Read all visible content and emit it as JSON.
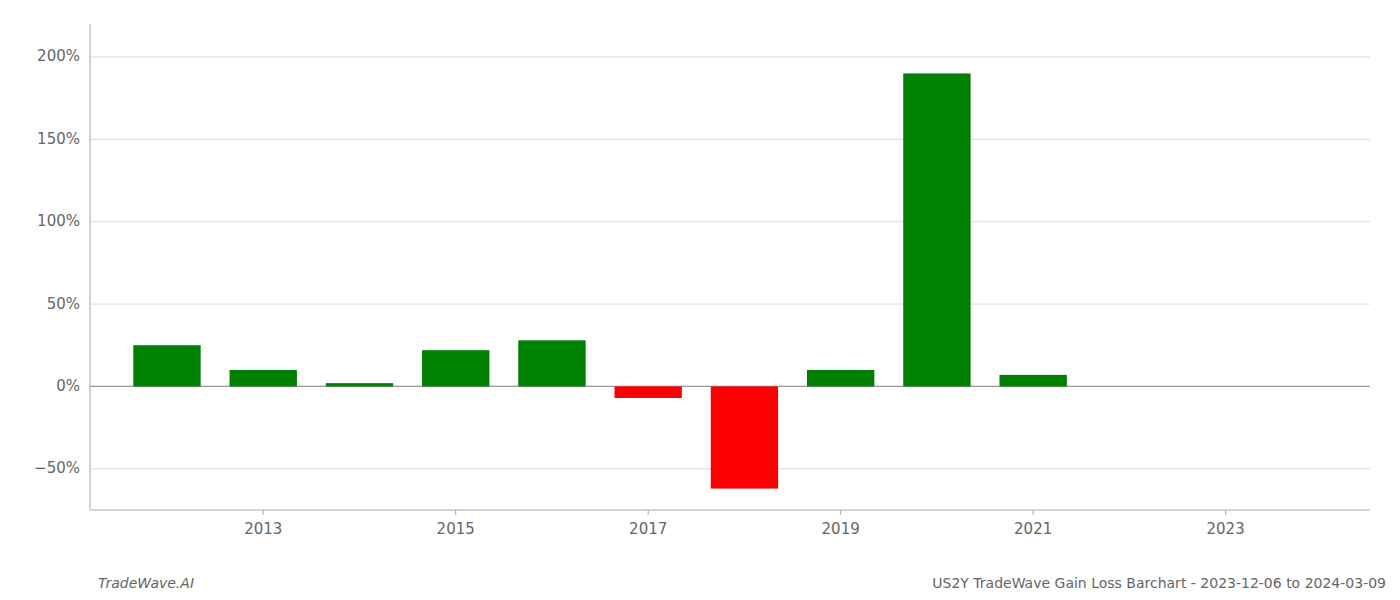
{
  "chart_data": {
    "type": "bar",
    "x": [
      2012,
      2013,
      2014,
      2015,
      2016,
      2017,
      2018,
      2019,
      2020,
      2021,
      2022
    ],
    "values": [
      0.25,
      0.1,
      0.02,
      0.22,
      0.28,
      -0.07,
      -0.62,
      0.1,
      1.9,
      0.07,
      0.0
    ],
    "colors": [
      "#008000",
      "#008000",
      "#008000",
      "#008000",
      "#008000",
      "#ff0000",
      "#ff0000",
      "#008000",
      "#008000",
      "#008000",
      "#008000"
    ],
    "xlim": [
      2011.2,
      2024.5
    ],
    "xticks": [
      2013,
      2015,
      2017,
      2019,
      2021,
      2023
    ],
    "ylim": [
      -0.75,
      2.2
    ],
    "yticks": [
      {
        "value": -0.5,
        "label": "−50%"
      },
      {
        "value": 0.0,
        "label": "0%"
      },
      {
        "value": 0.5,
        "label": "50%"
      },
      {
        "value": 1.0,
        "label": "100%"
      },
      {
        "value": 1.5,
        "label": "150%"
      },
      {
        "value": 2.0,
        "label": "200%"
      }
    ],
    "grid": true,
    "annotations": [
      "TradeWave.AI",
      "US2Y TradeWave Gain Loss Barchart - 2023-12-06 to 2024-03-09"
    ]
  }
}
